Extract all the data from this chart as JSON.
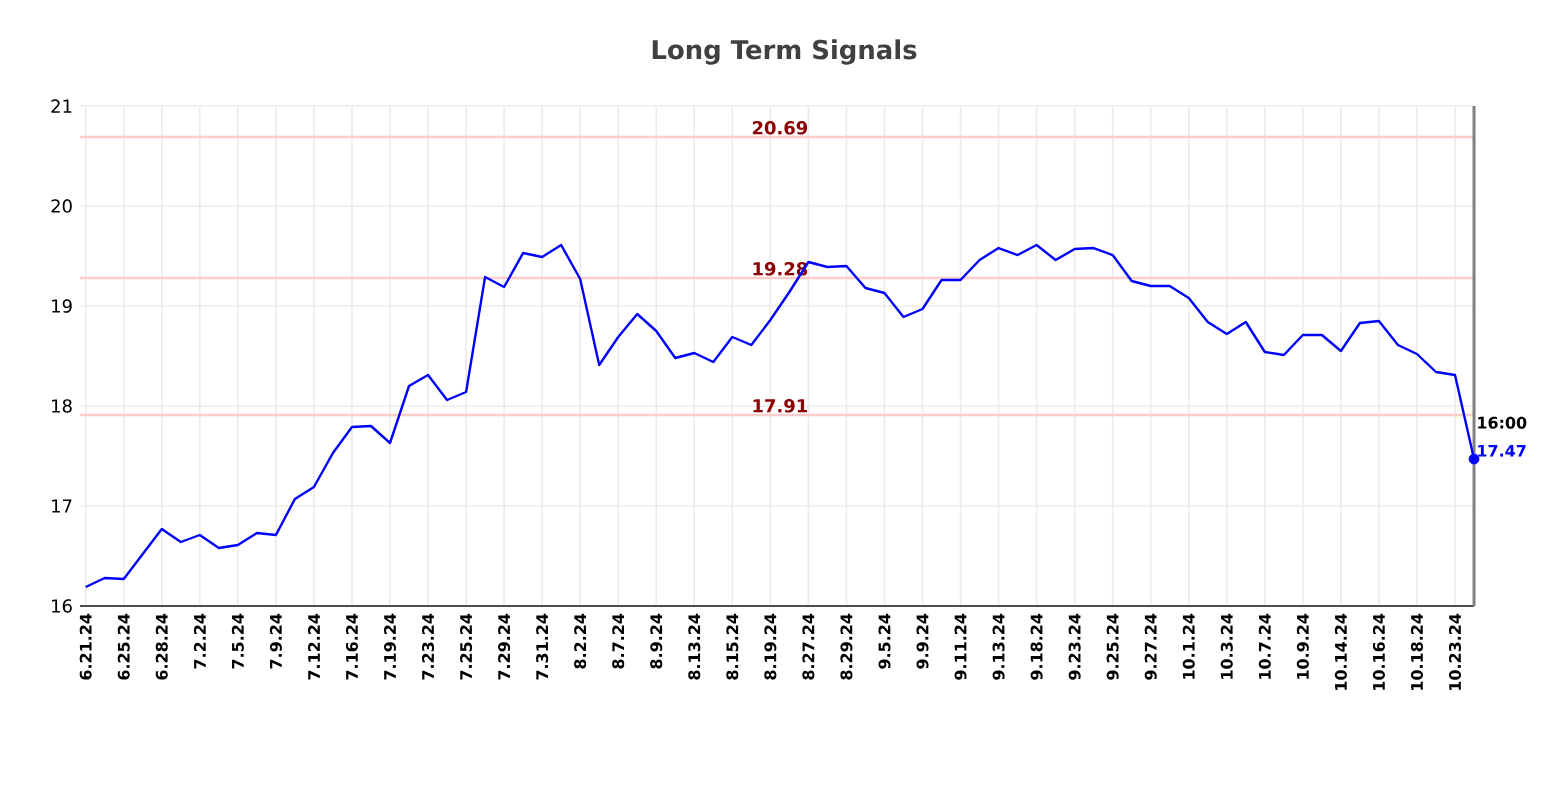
{
  "chart_data": {
    "type": "line",
    "title": "Long Term Signals",
    "categories": [
      "6.21.24",
      null,
      "6.25.24",
      null,
      "6.28.24",
      null,
      "7.2.24",
      null,
      "7.5.24",
      null,
      "7.9.24",
      null,
      "7.12.24",
      null,
      "7.16.24",
      null,
      "7.19.24",
      null,
      "7.23.24",
      null,
      "7.25.24",
      null,
      "7.29.24",
      null,
      "7.31.24",
      null,
      "8.2.24",
      null,
      "8.7.24",
      null,
      "8.9.24",
      null,
      "8.13.24",
      null,
      "8.15.24",
      null,
      "8.19.24",
      null,
      "8.27.24",
      null,
      "8.29.24",
      null,
      "9.5.24",
      null,
      "9.9.24",
      null,
      "9.11.24",
      null,
      "9.13.24",
      null,
      "9.18.24",
      null,
      "9.23.24",
      null,
      "9.25.24",
      null,
      "9.27.24",
      null,
      "10.1.24",
      null,
      "10.3.24",
      null,
      "10.7.24",
      null,
      "10.9.24",
      null,
      "10.14.24",
      null,
      "10.16.24",
      null,
      "10.18.24",
      null,
      "10.23.24",
      null
    ],
    "series": [
      {
        "color": "#0000ff",
        "values": [
          16.19,
          16.28,
          16.27,
          16.52,
          16.77,
          16.64,
          16.71,
          16.58,
          16.61,
          16.73,
          16.71,
          17.07,
          17.19,
          17.53,
          17.79,
          17.8,
          17.63,
          18.2,
          18.31,
          18.06,
          18.14,
          19.29,
          19.19,
          19.53,
          19.49,
          19.61,
          19.27,
          18.41,
          18.69,
          18.92,
          18.75,
          18.48,
          18.53,
          18.44,
          18.69,
          18.61,
          18.86,
          19.14,
          19.44,
          19.39,
          19.4,
          19.18,
          19.13,
          18.89,
          18.97,
          19.26,
          19.26,
          19.46,
          19.58,
          19.51,
          19.61,
          19.46,
          19.57,
          19.58,
          19.51,
          19.25,
          19.2,
          19.2,
          19.08,
          18.84,
          18.72,
          18.84,
          18.54,
          18.51,
          18.71,
          18.71,
          18.55,
          18.83,
          18.85,
          18.61,
          18.52,
          18.34,
          18.31,
          17.47
        ]
      },
      {
        "type": "scatter",
        "color": "#0000ff",
        "marker": "circle",
        "values": [
          null,
          null,
          null,
          null,
          null,
          null,
          null,
          null,
          null,
          null,
          null,
          null,
          null,
          null,
          null,
          null,
          null,
          null,
          null,
          null,
          null,
          null,
          null,
          null,
          null,
          null,
          null,
          null,
          null,
          null,
          null,
          null,
          null,
          null,
          null,
          null,
          null,
          null,
          null,
          null,
          null,
          null,
          null,
          null,
          null,
          null,
          null,
          null,
          null,
          null,
          null,
          null,
          null,
          null,
          null,
          null,
          null,
          null,
          null,
          null,
          null,
          null,
          null,
          null,
          null,
          null,
          null,
          null,
          null,
          null,
          null,
          null,
          null,
          17.47
        ],
        "value_labels": [
          null,
          null,
          null,
          null,
          null,
          null,
          null,
          null,
          null,
          null,
          null,
          null,
          null,
          null,
          null,
          null,
          null,
          null,
          null,
          null,
          null,
          null,
          null,
          null,
          null,
          null,
          null,
          null,
          null,
          null,
          null,
          null,
          null,
          null,
          null,
          null,
          null,
          null,
          null,
          null,
          null,
          null,
          null,
          null,
          null,
          null,
          null,
          null,
          null,
          null,
          null,
          null,
          null,
          null,
          null,
          null,
          null,
          null,
          null,
          null,
          null,
          null,
          null,
          null,
          null,
          null,
          null,
          null,
          null,
          null,
          null,
          null,
          null,
          "17.47"
        ]
      }
    ],
    "ylim": [
      16,
      21
    ],
    "yticks": [
      16,
      17,
      18,
      19,
      20,
      21
    ],
    "grid": true,
    "ref_lines": [
      {
        "axis": "y",
        "value": 20.69,
        "label": "20.69",
        "color": "#ffcccc"
      },
      {
        "axis": "y",
        "value": 19.28,
        "label": "19.28",
        "color": "#ffcccc"
      },
      {
        "axis": "y",
        "value": 17.91,
        "label": "17.91",
        "color": "#ffcccc"
      }
    ],
    "annotations": [
      "16:00"
    ]
  }
}
